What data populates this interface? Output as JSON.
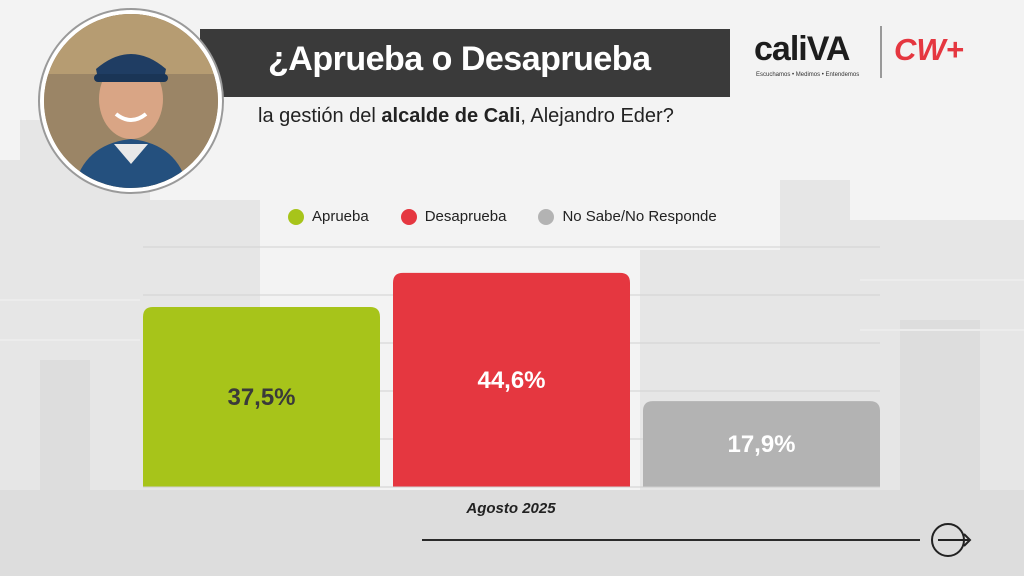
{
  "header": {
    "title": "¿Aprueba o Desaprueba",
    "subtitle_pre": "la gestión del ",
    "subtitle_bold": "alcalde de Cali",
    "subtitle_post": ", Alejandro Eder?"
  },
  "logos": {
    "caliva_text": "caliVA",
    "caliva_tagline": "Escuchamos • Medimos • Entendemos",
    "cw_text": "CW+",
    "colors": {
      "caliva_accent": "#a7c41a",
      "cw": "#e53740"
    }
  },
  "icons": {
    "photo": "person-photo",
    "next": "arrow-circle-right-icon"
  },
  "chart_data": {
    "type": "bar",
    "categories": [
      "Aprueba",
      "Desaprueba",
      "No Sabe/No Responde"
    ],
    "values": [
      37.5,
      44.6,
      17.9
    ],
    "value_labels": [
      "37,5%",
      "44,6%",
      "17,9%"
    ],
    "colors": [
      "#a7c41a",
      "#e53740",
      "#b3b3b3"
    ],
    "label_colors": [
      "#3a3a3a",
      "#ffffff",
      "#ffffff"
    ],
    "xlabel": "Agosto 2025",
    "ylim": [
      0,
      50
    ],
    "grid": true,
    "legend": "top"
  }
}
